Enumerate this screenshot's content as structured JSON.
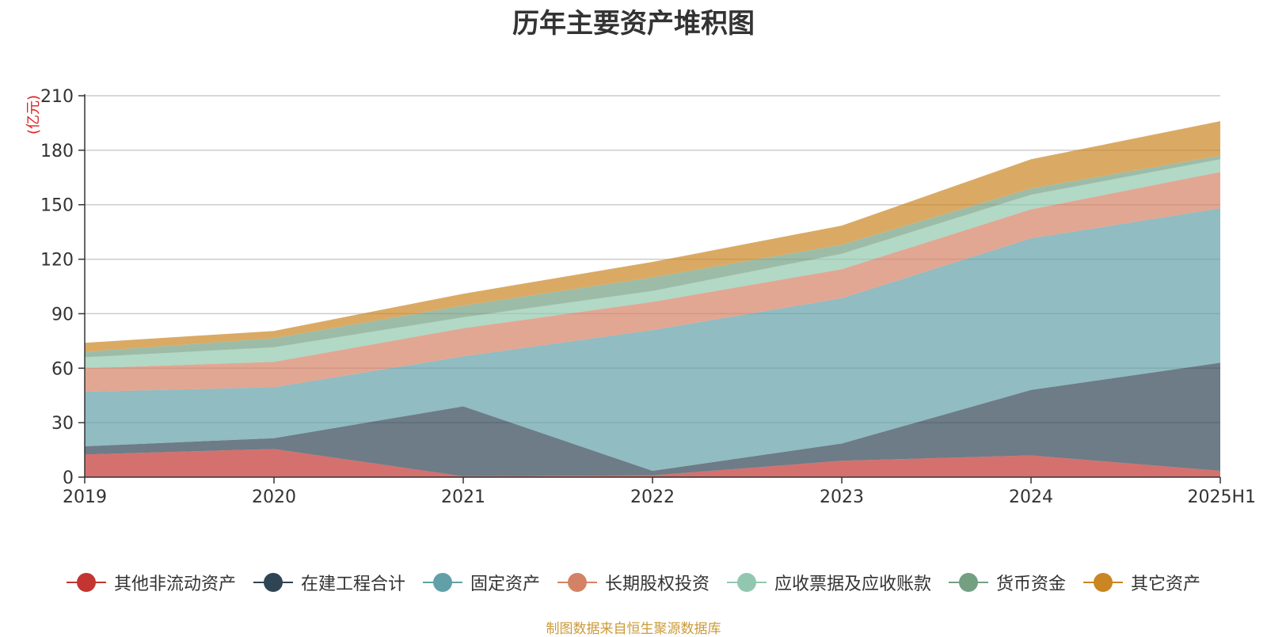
{
  "chart_data": {
    "type": "area",
    "stacked": true,
    "title": "历年主要资产堆积图",
    "unit_label": "(亿元)",
    "x": [
      "2019",
      "2020",
      "2021",
      "2022",
      "2023",
      "2024",
      "2025H1"
    ],
    "ylim": [
      0,
      210
    ],
    "yticks": [
      0,
      30,
      60,
      90,
      120,
      150,
      180,
      210
    ],
    "grid": true,
    "legend_position": "bottom",
    "series": [
      {
        "name": "其他非流动资产",
        "color": "#c23531",
        "values": [
          12.5,
          15.5,
          0.5,
          1.0,
          9.0,
          12.0,
          3.5
        ]
      },
      {
        "name": "在建工程合计",
        "color": "#2f4554",
        "values": [
          4.5,
          6.0,
          38.5,
          2.5,
          9.5,
          36.0,
          59.5
        ]
      },
      {
        "name": "固定资产",
        "color": "#61a0a8",
        "values": [
          30.0,
          28.0,
          27.5,
          77.5,
          80.0,
          83.5,
          85.0
        ]
      },
      {
        "name": "长期股权投资",
        "color": "#d48265",
        "values": [
          13.0,
          14.0,
          15.5,
          15.5,
          16.0,
          16.0,
          20.0
        ]
      },
      {
        "name": "应收票据及应收账款",
        "color": "#91c7ae",
        "values": [
          6.0,
          8.0,
          6.0,
          6.0,
          8.5,
          8.0,
          7.0
        ]
      },
      {
        "name": "货币资金",
        "color": "#749f83",
        "values": [
          3.0,
          5.0,
          6.5,
          7.5,
          5.0,
          3.5,
          2.0
        ]
      },
      {
        "name": "其它资产",
        "color": "#ca8622",
        "values": [
          5.0,
          4.0,
          6.5,
          8.5,
          10.5,
          16.0,
          19.0
        ]
      }
    ],
    "source_note": "制图数据来自恒生聚源数据库"
  }
}
